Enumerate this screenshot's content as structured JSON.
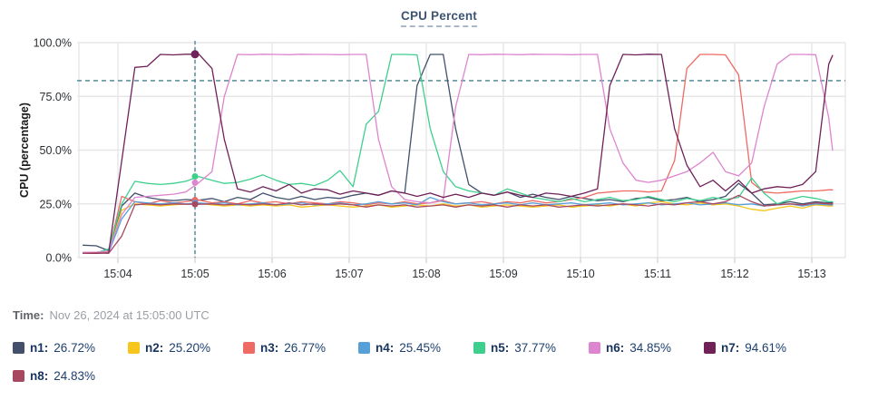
{
  "footer": {
    "time_label": "Time:",
    "time_value": "Nov 26, 2024 at 15:05:00 UTC"
  },
  "style_colors": {
    "grid": "#e7e7e9",
    "tick": "#d5d5d7",
    "crosshair": "#44808e",
    "axis_text": "#2b2f33"
  },
  "chart_data": {
    "type": "line",
    "title": "CPU Percent",
    "xlabel": "",
    "ylabel": "CPU (percentage)",
    "grid": true,
    "legend_position": "bottom",
    "ylim": [
      0,
      100
    ],
    "xlim": [
      3.49,
      13.44
    ],
    "x_unit": "minutes after 15:00 UTC",
    "y_ticks": [
      {
        "v": 0,
        "label": "0.0%"
      },
      {
        "v": 25,
        "label": "25.0%"
      },
      {
        "v": 50,
        "label": "50.0%"
      },
      {
        "v": 75,
        "label": "75.0%"
      },
      {
        "v": 100,
        "label": "100.0%"
      }
    ],
    "x_ticks": [
      {
        "t": 4,
        "label": "15:04"
      },
      {
        "t": 5,
        "label": "15:05"
      },
      {
        "t": 6,
        "label": "15:06"
      },
      {
        "t": 7,
        "label": "15:07"
      },
      {
        "t": 8,
        "label": "15:08"
      },
      {
        "t": 9,
        "label": "15:09"
      },
      {
        "t": 10,
        "label": "15:10"
      },
      {
        "t": 11,
        "label": "15:11"
      },
      {
        "t": 12,
        "label": "15:12"
      },
      {
        "t": 13,
        "label": "15:13"
      }
    ],
    "threshold_percent": 82.3,
    "crosshair": {
      "t": 5.0,
      "label": "15:05:00"
    },
    "x": [
      3.55,
      3.72,
      3.88,
      4.05,
      4.22,
      4.38,
      4.55,
      4.72,
      4.88,
      5.05,
      5.22,
      5.38,
      5.55,
      5.72,
      5.88,
      6.05,
      6.22,
      6.38,
      6.55,
      6.72,
      6.88,
      7.05,
      7.22,
      7.38,
      7.55,
      7.72,
      7.88,
      8.05,
      8.22,
      8.38,
      8.55,
      8.72,
      8.88,
      9.05,
      9.22,
      9.38,
      9.55,
      9.72,
      9.88,
      10.05,
      10.22,
      10.38,
      10.55,
      10.72,
      10.88,
      11.05,
      11.22,
      11.38,
      11.55,
      11.72,
      11.88,
      12.05,
      12.22,
      12.38,
      12.55,
      12.72,
      12.88,
      13.05,
      13.22,
      13.27
    ],
    "series": [
      {
        "name": "n1",
        "color": "#42506b",
        "crosshair_value": 26.72,
        "crosshair_label": "26.72%",
        "values": [
          5.8,
          5.5,
          3.2,
          24,
          30,
          28,
          27,
          26.5,
          27,
          26.7,
          27.5,
          26,
          28,
          27,
          30,
          28,
          27,
          28.5,
          27,
          28,
          27.5,
          29,
          30,
          29,
          31,
          30,
          80,
          94.5,
          94.5,
          60,
          34,
          30,
          29,
          30.5,
          28,
          29.5,
          28,
          27,
          28.5,
          27.5,
          26.5,
          27,
          26,
          27.5,
          28,
          26.5,
          27,
          28,
          26,
          27,
          28.5,
          34.5,
          30,
          24.5,
          25,
          26,
          25,
          26,
          25.5,
          25.5
        ]
      },
      {
        "name": "n2",
        "color": "#f7c51c",
        "crosshair_value": 25.2,
        "crosshair_label": "25.20%",
        "values": [
          2,
          2.2,
          2.5,
          22,
          25,
          24.5,
          24,
          24.5,
          25,
          25.2,
          24.5,
          24,
          24.5,
          24,
          24.5,
          24,
          24.5,
          23.5,
          24,
          24.5,
          24,
          23.5,
          24,
          24.5,
          23.5,
          24,
          24.5,
          24,
          25,
          24,
          24.5,
          23.5,
          24,
          24.5,
          24,
          23.5,
          24,
          24.5,
          23.5,
          24,
          24.5,
          24,
          25,
          24,
          25.5,
          26,
          25,
          24.5,
          25.5,
          24.5,
          25,
          24,
          22.5,
          21.8,
          23,
          24,
          23,
          24.5,
          24,
          24
        ]
      },
      {
        "name": "n3",
        "color": "#ef6a63",
        "crosshair_value": 26.77,
        "crosshair_label": "26.77%",
        "values": [
          2.2,
          2.5,
          3,
          28.5,
          26,
          25,
          26.5,
          25.5,
          26,
          26.8,
          25.5,
          26,
          25,
          26.5,
          25.5,
          26,
          25,
          26,
          25.5,
          25,
          26,
          25.5,
          24.5,
          25.5,
          25,
          26,
          25,
          25.5,
          26.5,
          25,
          25.5,
          26,
          25,
          26,
          25.5,
          26.5,
          25.5,
          26,
          27,
          28,
          30,
          30.5,
          31,
          31,
          30.5,
          31,
          45,
          88,
          94.5,
          94.5,
          94.3,
          85,
          35,
          30.5,
          30,
          30.5,
          31,
          31,
          31.5,
          31.5
        ]
      },
      {
        "name": "n4",
        "color": "#56a0d8",
        "crosshair_value": 25.45,
        "crosshair_label": "25.45%",
        "values": [
          2,
          2,
          2.3,
          18,
          26,
          25.5,
          25,
          25.5,
          25,
          25.4,
          25,
          25.5,
          24.5,
          25,
          25.5,
          24.5,
          25,
          25.5,
          24.5,
          25,
          25.5,
          24.5,
          25,
          26,
          25,
          25.5,
          24.5,
          28,
          26,
          25,
          25.5,
          24.5,
          25,
          25.5,
          24.5,
          25.5,
          24.5,
          25,
          25.5,
          24.5,
          25,
          25.5,
          24.5,
          25,
          25.5,
          24.5,
          25,
          25.5,
          24.5,
          25,
          25.5,
          24.5,
          25,
          24,
          24.5,
          25,
          24,
          25,
          24.5,
          24.5
        ]
      },
      {
        "name": "n5",
        "color": "#3ecf8e",
        "crosshair_value": 37.77,
        "crosshair_label": "37.77%",
        "values": [
          2,
          2.2,
          4,
          25,
          35.5,
          34.5,
          34,
          34.5,
          35.5,
          37.7,
          36,
          34.5,
          35,
          36.5,
          38.5,
          36,
          34,
          34.5,
          33.5,
          36,
          40.5,
          33,
          62,
          68,
          94.5,
          94.5,
          94.3,
          60,
          40,
          33,
          31,
          30,
          29,
          32,
          30,
          28,
          27,
          26,
          27.5,
          26,
          27,
          28,
          26.5,
          27,
          28.5,
          27,
          26,
          27.5,
          26.5,
          28,
          27,
          28,
          37,
          30,
          25,
          27,
          28.5,
          27.5,
          26,
          26
        ]
      },
      {
        "name": "n6",
        "color": "#dd85ce",
        "crosshair_value": 34.85,
        "crosshair_label": "34.85%",
        "values": [
          2.5,
          2.5,
          3,
          20,
          28,
          28.5,
          29,
          29.5,
          30.5,
          34.9,
          40,
          75,
          94.5,
          94.4,
          94.6,
          94.5,
          94.4,
          94.6,
          94.5,
          94.5,
          94.4,
          94.5,
          94.5,
          55,
          33,
          27,
          26,
          25.5,
          27,
          70,
          94.5,
          94.4,
          94.6,
          94.5,
          94.4,
          94.6,
          94.5,
          94.5,
          94.4,
          94.5,
          94.5,
          60,
          44,
          36,
          35,
          36,
          38,
          40,
          44,
          49,
          40,
          38,
          44,
          70,
          90,
          94.5,
          94.5,
          94.4,
          65,
          50
        ]
      },
      {
        "name": "n7",
        "color": "#6f2158",
        "crosshair_value": 94.61,
        "crosshair_label": "94.61%",
        "values": [
          2,
          2,
          2.2,
          45,
          88.5,
          89,
          94.5,
          94.3,
          94.6,
          94.6,
          88,
          55,
          32,
          30.5,
          33,
          31,
          34,
          30,
          32,
          31.5,
          29.5,
          31,
          30,
          29,
          31,
          30,
          28.5,
          30,
          28,
          29.5,
          28,
          30,
          29,
          30.5,
          29,
          28,
          30,
          29.5,
          28.5,
          30,
          32,
          80,
          94.5,
          94.3,
          94.6,
          94.5,
          60,
          43,
          33,
          36,
          31,
          36,
          30,
          32,
          33,
          32.5,
          34,
          40,
          90,
          94
        ]
      },
      {
        "name": "n8",
        "color": "#a84860",
        "crosshair_value": 24.83,
        "crosshair_label": "24.83%",
        "values": [
          2,
          2.2,
          2,
          10,
          24.5,
          25,
          24.5,
          25,
          24.8,
          24.8,
          25,
          24.5,
          25,
          24.5,
          25,
          24.5,
          25.5,
          24.5,
          25,
          24.5,
          25,
          24.5,
          23.5,
          24.5,
          24,
          24.5,
          23.5,
          24,
          24.5,
          23.5,
          24.5,
          24,
          24.5,
          23.5,
          24.5,
          24,
          24.5,
          23.5,
          24,
          24.5,
          24,
          24.5,
          25,
          24.5,
          24,
          25,
          24.5,
          25.5,
          26,
          25,
          26,
          29,
          26,
          24,
          24.5,
          25,
          24.5,
          25.5,
          25,
          25
        ]
      }
    ]
  }
}
